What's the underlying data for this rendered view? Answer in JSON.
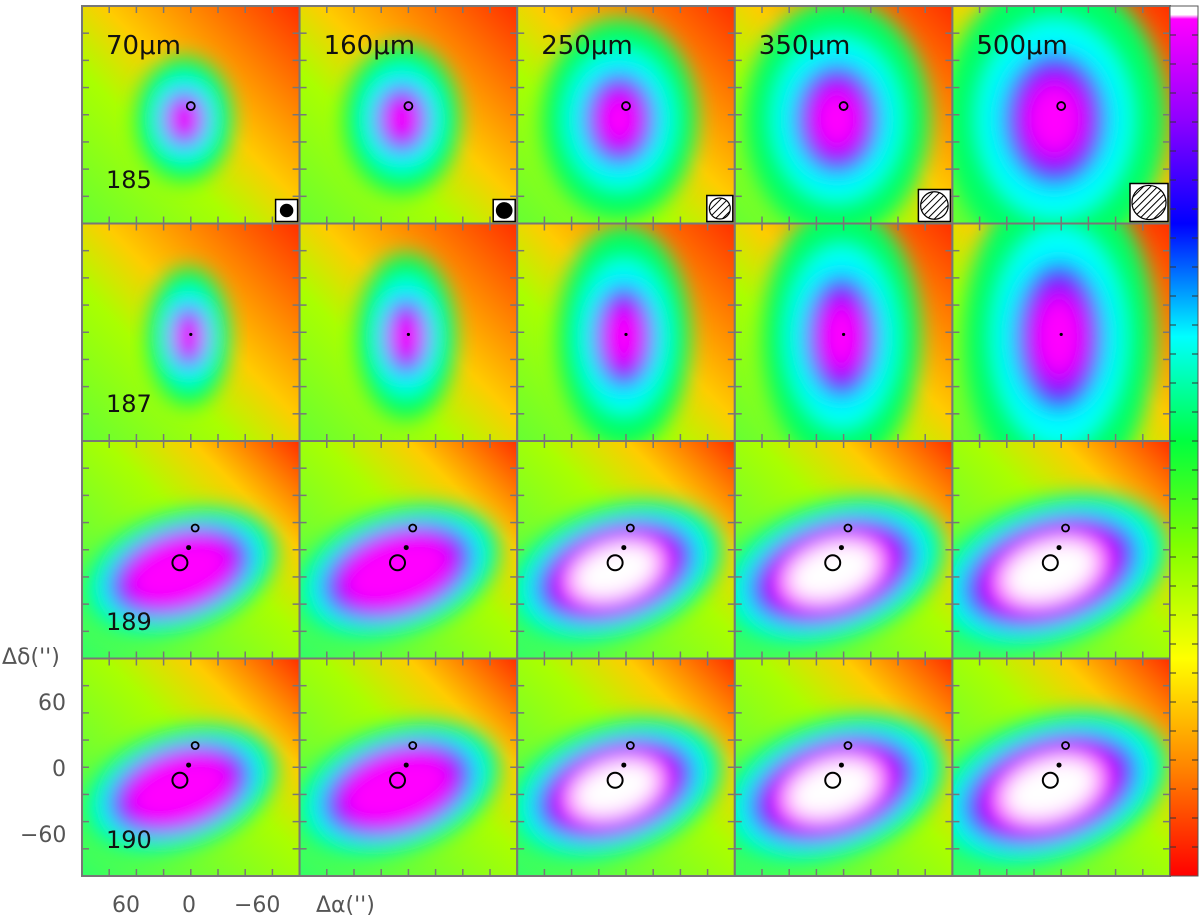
{
  "figure": {
    "wavelengths": [
      "70μm",
      "160μm",
      "250μm",
      "350μm",
      "500μm"
    ],
    "sources": [
      "185",
      "187",
      "189",
      "190"
    ],
    "y_axis_label": "Δδ('')",
    "x_axis_label": "Δα('')",
    "y_ticks": [
      "60",
      "0",
      "−60"
    ],
    "x_ticks": [
      "60",
      "0",
      "−60"
    ],
    "colormap": [
      "#ff0000",
      "#ff7f00",
      "#ffff00",
      "#7fff00",
      "#00ff00",
      "#00ffff",
      "#0000ff",
      "#8b00ff",
      "#ff00ff",
      "#ffffff"
    ]
  }
}
